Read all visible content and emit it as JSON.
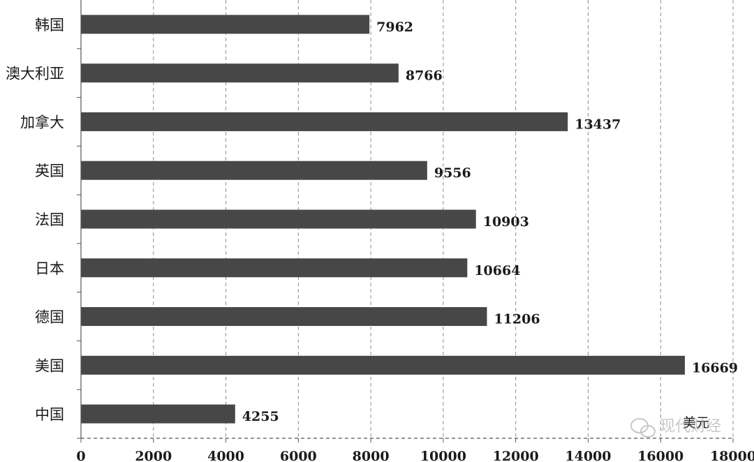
{
  "chart_data": {
    "type": "bar",
    "orientation": "horizontal",
    "categories": [
      "韩国",
      "澳大利亚",
      "加拿大",
      "英国",
      "法国",
      "日本",
      "德国",
      "美国",
      "中国"
    ],
    "values": [
      7962,
      8766,
      13437,
      9556,
      10903,
      10664,
      11206,
      16669,
      4255
    ],
    "data_labels": [
      "7962",
      "8766",
      "13437",
      "9556",
      "10903",
      "10664",
      "11206",
      "16669",
      "4255"
    ],
    "xlim": [
      0,
      18000
    ],
    "xticks": [
      "0",
      "2000",
      "4000",
      "6000",
      "8000",
      "10000",
      "12000",
      "14000",
      "16000",
      "18000"
    ],
    "unit_label": "美元",
    "bar_color": "#474747",
    "grid": "vertical dashed",
    "legend": "none"
  },
  "watermark": {
    "text": "现代财经",
    "icon": "wechat-icon"
  }
}
